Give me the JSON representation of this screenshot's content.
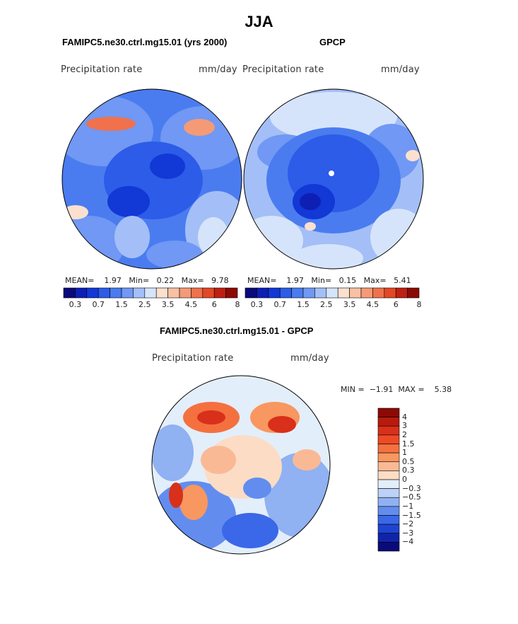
{
  "page": {
    "title": "JJA"
  },
  "panels": [
    {
      "id": "model",
      "header": "FAMIPC5.ne30.ctrl.mg15.01 (yrs 2000)",
      "variable": "Precipitation rate",
      "units": "mm/day",
      "stats": {
        "mean_label": "MEAN=",
        "mean": "1.97",
        "min_label": "Min=",
        "min": "0.22",
        "max_label": "Max=",
        "max": "9.78"
      }
    },
    {
      "id": "obs",
      "header": "GPCP",
      "variable": "Precipitation rate",
      "units": "mm/day",
      "stats": {
        "mean_label": "MEAN=",
        "mean": "1.97",
        "min_label": "Min=",
        "min": "0.15",
        "max_label": "Max=",
        "max": "5.41"
      }
    },
    {
      "id": "diff",
      "header": "FAMIPC5.ne30.ctrl.mg15.01 - GPCP",
      "variable": "Precipitation rate",
      "units": "mm/day",
      "stats": {
        "min_label": "MIN =",
        "min": "−1.91",
        "max_label": "MAX =",
        "max": "5.38"
      }
    }
  ],
  "colorbars": {
    "abs": {
      "colors": [
        "#0a0a7a",
        "#0e1fb4",
        "#1238d6",
        "#2c5ce8",
        "#4a7cf0",
        "#7098f4",
        "#a4bff7",
        "#d6e4fb",
        "#fbe0cf",
        "#f8c1a4",
        "#f59a76",
        "#f0714c",
        "#e24826",
        "#bf2012",
        "#8c0a05"
      ],
      "tick_labels": [
        "0.3",
        "0.7",
        "1.5",
        "2.5",
        "3.5",
        "4.5",
        "6",
        "8"
      ]
    },
    "diff": {
      "colors": [
        "#8c0a05",
        "#b81a0d",
        "#d8301a",
        "#ee4a25",
        "#f5703f",
        "#f8975f",
        "#fab995",
        "#fcdcc5",
        "#e3eefb",
        "#bcd2f6",
        "#90b1f2",
        "#628def",
        "#3a68e8",
        "#1e45d2",
        "#1024a8",
        "#0a0a7a"
      ],
      "tick_labels": [
        "4",
        "3",
        "2",
        "1.5",
        "1",
        "0.5",
        "0.3",
        "0",
        "−0.3",
        "−0.5",
        "−1",
        "−1.5",
        "−2",
        "−3",
        "−4"
      ]
    }
  }
}
